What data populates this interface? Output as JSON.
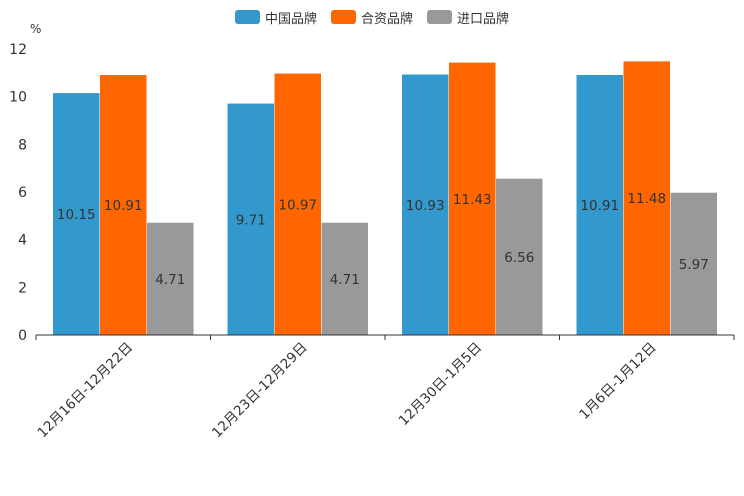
{
  "chart_data": {
    "type": "bar",
    "title": "",
    "ylabel": "%",
    "xlabel": "",
    "ylim": [
      0,
      12
    ],
    "yticks": [
      0,
      2,
      4,
      6,
      8,
      10,
      12
    ],
    "categories": [
      "12月16日-12月22日",
      "12月23日-12月29日",
      "12月30日-1月5日",
      "1月6日-1月12日"
    ],
    "series": [
      {
        "name": "中国品牌",
        "color": "#3399cc",
        "values": [
          10.15,
          9.71,
          10.93,
          10.91
        ]
      },
      {
        "name": "合资品牌",
        "color": "#ff6600",
        "values": [
          10.91,
          10.97,
          11.43,
          11.48
        ]
      },
      {
        "name": "进口品牌",
        "color": "#999999",
        "values": [
          4.71,
          4.71,
          6.56,
          5.97
        ]
      }
    ],
    "legend_position": "top-center",
    "grid": false
  }
}
